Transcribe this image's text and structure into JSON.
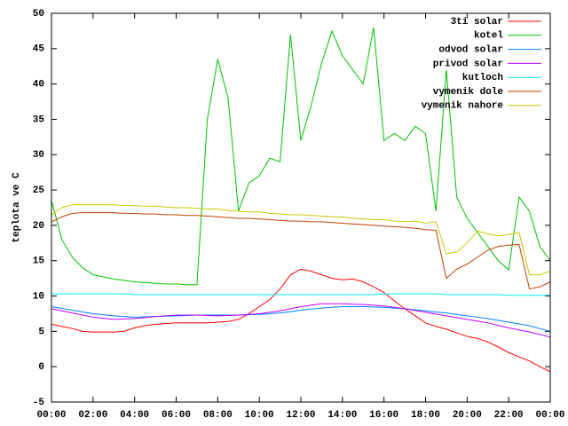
{
  "chart_data": {
    "type": "line",
    "y_label": "teplota ve C",
    "x": [
      0,
      0.5,
      1,
      1.5,
      2,
      2.5,
      3,
      3.5,
      4,
      4.5,
      5,
      5.5,
      6,
      6.5,
      7,
      7.5,
      8,
      8.5,
      9,
      9.5,
      10,
      10.5,
      11,
      11.5,
      12,
      12.5,
      13,
      13.5,
      14,
      14.5,
      15,
      15.5,
      16,
      16.5,
      17,
      17.5,
      18,
      18.5,
      19,
      19.5,
      20,
      20.5,
      21,
      21.5,
      22,
      22.5,
      23,
      23.5,
      24
    ],
    "xlim": [
      0,
      24
    ],
    "xticks": [
      {
        "value": 0,
        "label": "00:00"
      },
      {
        "value": 2,
        "label": "02:00"
      },
      {
        "value": 4,
        "label": "04:00"
      },
      {
        "value": 6,
        "label": "06:00"
      },
      {
        "value": 8,
        "label": "08:00"
      },
      {
        "value": 10,
        "label": "10:00"
      },
      {
        "value": 12,
        "label": "12:00"
      },
      {
        "value": 14,
        "label": "14:00"
      },
      {
        "value": 16,
        "label": "16:00"
      },
      {
        "value": 18,
        "label": "18:00"
      },
      {
        "value": 20,
        "label": "20:00"
      },
      {
        "value": 22,
        "label": "22:00"
      },
      {
        "value": 24,
        "label": "00:00"
      }
    ],
    "ylim": [
      -5,
      50
    ],
    "yticks": [
      -5,
      0,
      5,
      10,
      15,
      20,
      25,
      30,
      35,
      40,
      45,
      50
    ],
    "legend": "top-right",
    "series": [
      {
        "name": "3ti solar",
        "color": "#ff0000",
        "values": [
          6.0,
          5.7,
          5.4,
          5.0,
          4.9,
          4.9,
          4.9,
          5.0,
          5.5,
          5.8,
          6.0,
          6.1,
          6.2,
          6.2,
          6.2,
          6.2,
          6.3,
          6.4,
          6.7,
          7.5,
          8.5,
          9.5,
          11.0,
          13.0,
          13.8,
          13.5,
          13.0,
          12.5,
          12.3,
          12.4,
          12.0,
          11.3,
          10.5,
          9.3,
          8.2,
          7.2,
          6.2,
          5.7,
          5.3,
          4.8,
          4.3,
          4.0,
          3.5,
          2.8,
          2.0,
          1.4,
          0.8,
          0,
          -0.7
        ]
      },
      {
        "name": "kotel",
        "color": "#00c000",
        "values": [
          23.5,
          18,
          15.5,
          14,
          13,
          12.7,
          12.4,
          12.2,
          12,
          11.9,
          11.8,
          11.7,
          11.7,
          11.6,
          11.6,
          35,
          43.5,
          38,
          22,
          26,
          27,
          29.5,
          29,
          47,
          32,
          37,
          43,
          47.5,
          44,
          42,
          40,
          48,
          32,
          33,
          32,
          34,
          33,
          22,
          42,
          24,
          21,
          19,
          17,
          15,
          13.7,
          24,
          22,
          17,
          15
        ]
      },
      {
        "name": "odvod solar",
        "color": "#0080ff",
        "values": [
          8.5,
          8.25,
          8,
          7.75,
          7.5,
          7.35,
          7.2,
          7.1,
          7,
          7.05,
          7.1,
          7.15,
          7.2,
          7.25,
          7.3,
          7.3,
          7.3,
          7.3,
          7.3,
          7.35,
          7.4,
          7.5,
          7.6,
          7.8,
          8.0,
          8.15,
          8.3,
          8.4,
          8.5,
          8.5,
          8.5,
          8.45,
          8.4,
          8.3,
          8.2,
          8.05,
          7.9,
          7.75,
          7.6,
          7.4,
          7.2,
          7.0,
          6.8,
          6.55,
          6.3,
          6.05,
          5.8,
          5.4,
          5.0
        ]
      },
      {
        "name": "privod solar",
        "color": "#c000ff",
        "values": [
          8.2,
          7.9,
          7.6,
          7.3,
          7.0,
          6.85,
          6.7,
          6.75,
          6.8,
          6.95,
          7.1,
          7.2,
          7.3,
          7.3,
          7.3,
          7.25,
          7.2,
          7.25,
          7.3,
          7.4,
          7.5,
          7.7,
          7.9,
          8.2,
          8.5,
          8.7,
          8.9,
          8.9,
          8.9,
          8.85,
          8.8,
          8.7,
          8.6,
          8.4,
          8.2,
          7.95,
          7.7,
          7.45,
          7.2,
          6.95,
          6.7,
          6.45,
          6.2,
          5.85,
          5.5,
          5.2,
          4.9,
          4.55,
          4.2
        ]
      },
      {
        "name": "kutloch",
        "color": "#00eeee",
        "values": [
          10.3,
          10.3,
          10.3,
          10.3,
          10.3,
          10.3,
          10.3,
          10.3,
          10.2,
          10.2,
          10.2,
          10.2,
          10.2,
          10.2,
          10.2,
          10.2,
          10.2,
          10.2,
          10.2,
          10.2,
          10.2,
          10.2,
          10.2,
          10.2,
          10.2,
          10.2,
          10.2,
          10.2,
          10.2,
          10.2,
          10.2,
          10.2,
          10.3,
          10.3,
          10.3,
          10.3,
          10.3,
          10.3,
          10.2,
          10.2,
          10.2,
          10.2,
          10.2,
          10.2,
          10.1,
          10.1,
          10.1,
          10.1,
          10.1
        ]
      },
      {
        "name": "vymenik dole",
        "color": "#c04000",
        "values": [
          20.5,
          21.2,
          21.7,
          21.8,
          21.8,
          21.8,
          21.8,
          21.7,
          21.7,
          21.6,
          21.6,
          21.5,
          21.5,
          21.4,
          21.4,
          21.3,
          21.2,
          21.1,
          21.0,
          21.0,
          20.9,
          20.8,
          20.7,
          20.6,
          20.6,
          20.5,
          20.5,
          20.4,
          20.3,
          20.2,
          20.1,
          20.0,
          19.9,
          19.8,
          19.7,
          19.6,
          19.4,
          19.3,
          12.5,
          13.8,
          14.5,
          15.5,
          16.5,
          17.0,
          17.2,
          17.3,
          11.0,
          11.3,
          12.0
        ]
      },
      {
        "name": "vymenik nahore",
        "color": "#c8c800",
        "values": [
          21.5,
          22.5,
          22.9,
          22.9,
          22.9,
          22.9,
          22.9,
          22.8,
          22.8,
          22.7,
          22.7,
          22.6,
          22.5,
          22.5,
          22.4,
          22.3,
          22.3,
          22.1,
          22.0,
          21.9,
          21.9,
          21.7,
          21.6,
          21.5,
          21.5,
          21.4,
          21.3,
          21.2,
          21.2,
          21.0,
          20.9,
          20.8,
          20.8,
          20.6,
          20.5,
          20.6,
          20.3,
          20.5,
          16.0,
          16.2,
          17.5,
          19.2,
          18.8,
          18.5,
          18.7,
          19.0,
          13.0,
          13.0,
          13.5
        ]
      }
    ]
  }
}
